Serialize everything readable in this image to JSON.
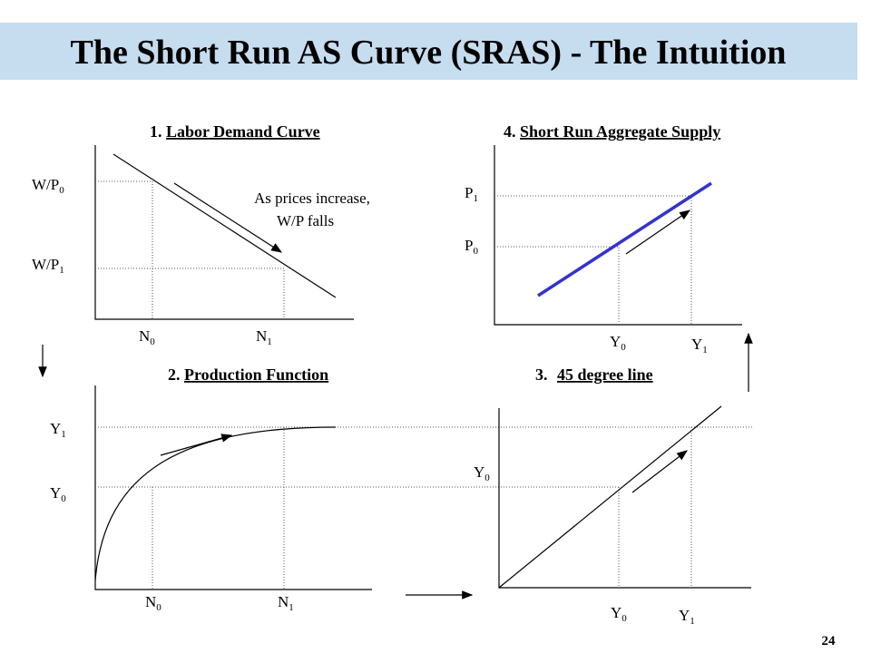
{
  "title": "The Short Run AS Curve (SRAS) - The Intuition",
  "page_number": "24",
  "panels": [
    {
      "number": "1.",
      "heading": "Labor Demand Curve",
      "labels": [
        {
          "base": "W/P",
          "sub": "0"
        },
        {
          "base": "W/P",
          "sub": "1"
        },
        {
          "base": "N",
          "sub": "0"
        },
        {
          "base": "N",
          "sub": "1"
        }
      ],
      "annotation": [
        "As prices increase,",
        "W/P falls"
      ]
    },
    {
      "number": "2.",
      "heading": "Production Function",
      "labels": [
        {
          "base": "Y",
          "sub": "1"
        },
        {
          "base": "Y",
          "sub": "0"
        },
        {
          "base": "N",
          "sub": "0"
        },
        {
          "base": "N",
          "sub": "1"
        }
      ]
    },
    {
      "number": "3.",
      "heading": "45 degree line",
      "labels": [
        {
          "base": "Y",
          "sub": "0"
        },
        {
          "base": "Y",
          "sub": "0"
        },
        {
          "base": "Y",
          "sub": "1"
        }
      ]
    },
    {
      "number": "4.",
      "heading": "Short Run Aggregate Supply",
      "labels": [
        {
          "base": "P",
          "sub": "1"
        },
        {
          "base": "P",
          "sub": "0"
        },
        {
          "base": "Y",
          "sub": "0"
        },
        {
          "base": "Y",
          "sub": "1"
        }
      ]
    }
  ]
}
